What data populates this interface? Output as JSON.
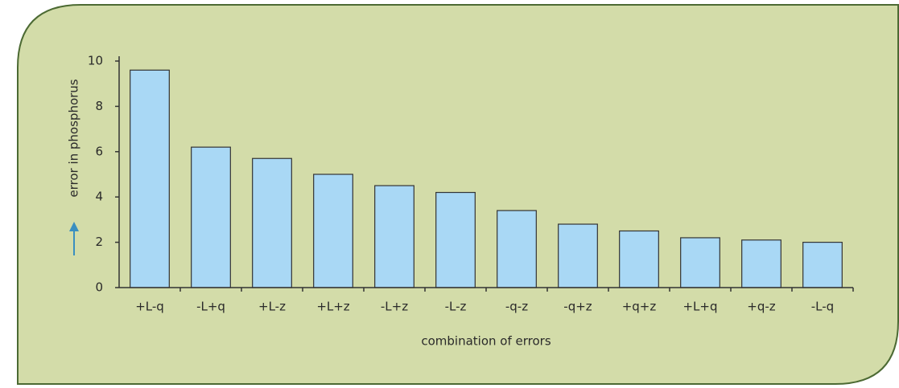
{
  "chart_data": {
    "type": "bar",
    "x_label": "combination of errors",
    "y_label": "error in phosphorus",
    "categories": [
      "+L-q",
      "-L+q",
      "+L-z",
      "+L+z",
      "-L+z",
      "-L-z",
      "-q-z",
      "-q+z",
      "+q+z",
      "+L+q",
      "+q-z",
      "-L-q"
    ],
    "values": [
      9.6,
      6.2,
      5.7,
      5.0,
      4.5,
      4.2,
      3.4,
      2.8,
      2.5,
      2.2,
      2.1,
      2.0
    ],
    "color": "#a9d8f5",
    "ylim": [
      0,
      10
    ],
    "yticks": [
      0,
      2,
      4,
      6,
      8,
      10
    ],
    "grid": false
  }
}
